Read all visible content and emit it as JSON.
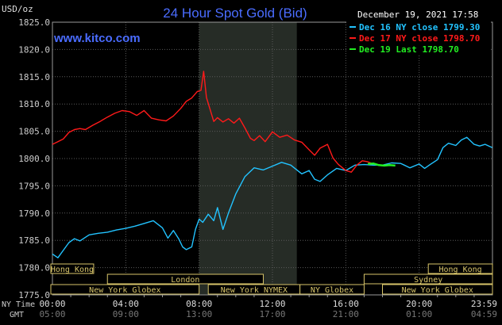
{
  "header": {
    "title": "24 Hour Spot Gold (Bid)",
    "unit": "USD/oz",
    "brand": "www.kitco.com",
    "datetime": "December 19, 2021 17:58"
  },
  "legend": [
    {
      "label": "Dec 16 NY close 1799.30",
      "color": "#22c3ff"
    },
    {
      "label": "Dec 17 NY close 1798.70",
      "color": "#ff1a1a"
    },
    {
      "label": "Dec 19 Last 1798.70",
      "color": "#22ee22"
    }
  ],
  "axis_labels": {
    "ny_time": "NY Time",
    "gmt": "GMT"
  },
  "sessions": [
    {
      "name": "Hong Kong",
      "start": -0.5,
      "end": 2.25,
      "row": 0
    },
    {
      "name": "Hong Kong",
      "start": 20.5,
      "end": 24.0,
      "row": 0
    },
    {
      "name": "London",
      "start": 3.0,
      "end": 11.5,
      "row": 1
    },
    {
      "name": "Sydney",
      "start": 17.0,
      "end": 24.0,
      "row": 1
    },
    {
      "name": "New York Globex",
      "start": -0.5,
      "end": 8.0,
      "row": 2
    },
    {
      "name": "New York NYMEX",
      "start": 8.5,
      "end": 13.5,
      "row": 2
    },
    {
      "name": "NY Globex",
      "start": 13.5,
      "end": 17.0,
      "row": 2
    },
    {
      "name": "New York Globex",
      "start": 18.0,
      "end": 24.0,
      "row": 2
    }
  ],
  "chart_data": {
    "type": "line",
    "title": "24 Hour Spot Gold (Bid)",
    "ylabel": "USD/oz",
    "ylim": [
      1775.0,
      1825.0
    ],
    "xlim": [
      0,
      24
    ],
    "grid": true,
    "shaded_region": [
      8.0,
      13.33
    ],
    "yticks": [
      "1775.0",
      "1780.0",
      "1785.0",
      "1790.0",
      "1795.0",
      "1800.0",
      "1805.0",
      "1810.0",
      "1815.0",
      "1820.0",
      "1825.0"
    ],
    "x_ticks_ny": [
      "00:00",
      "04:00",
      "08:00",
      "12:00",
      "16:00",
      "20:00",
      "23:59"
    ],
    "x_ticks_gmt": [
      "05:00",
      "09:00",
      "13:00",
      "17:00",
      "21:00",
      "01:00",
      "04:59"
    ],
    "series": [
      {
        "name": "Dec 16 NY close 1799.30",
        "color": "#22c3ff",
        "x": [
          0.0,
          0.3,
          0.6,
          0.9,
          1.2,
          1.5,
          2.0,
          2.5,
          3.0,
          3.5,
          4.0,
          4.5,
          5.0,
          5.5,
          6.0,
          6.3,
          6.6,
          6.9,
          7.1,
          7.3,
          7.6,
          7.8,
          8.0,
          8.2,
          8.5,
          8.8,
          9.0,
          9.3,
          9.6,
          10.0,
          10.5,
          11.0,
          11.5,
          12.0,
          12.5,
          13.0,
          13.3,
          13.6,
          14.0,
          14.3,
          14.6,
          15.0,
          15.5,
          16.0,
          16.5,
          17.0,
          17.5,
          18.0,
          18.5,
          19.0,
          19.5,
          20.0,
          20.3,
          20.6,
          21.0,
          21.3,
          21.6,
          22.0,
          22.3,
          22.6,
          23.0,
          23.3,
          23.6,
          23.99
        ],
        "y": [
          1782.5,
          1781.8,
          1783.2,
          1784.6,
          1785.3,
          1784.9,
          1786.0,
          1786.3,
          1786.5,
          1786.9,
          1787.2,
          1787.6,
          1788.1,
          1788.6,
          1787.3,
          1785.4,
          1786.8,
          1785.2,
          1783.8,
          1783.3,
          1783.8,
          1787.0,
          1788.9,
          1788.3,
          1789.8,
          1788.6,
          1791.0,
          1787.0,
          1790.0,
          1793.5,
          1796.7,
          1798.3,
          1797.9,
          1798.6,
          1799.3,
          1798.8,
          1798.0,
          1797.2,
          1797.8,
          1796.2,
          1795.8,
          1797.0,
          1798.2,
          1797.8,
          1798.8,
          1798.9,
          1798.8,
          1798.8,
          1799.2,
          1799.1,
          1798.3,
          1799.0,
          1798.2,
          1798.9,
          1799.8,
          1802.0,
          1802.8,
          1802.4,
          1803.4,
          1803.9,
          1802.6,
          1802.3,
          1802.6,
          1802.0
        ]
      },
      {
        "name": "Dec 17 NY close 1798.70",
        "color": "#ff1a1a",
        "x": [
          0.0,
          0.3,
          0.6,
          0.9,
          1.2,
          1.5,
          1.8,
          2.2,
          2.6,
          3.0,
          3.4,
          3.8,
          4.2,
          4.6,
          5.0,
          5.4,
          5.8,
          6.2,
          6.6,
          7.0,
          7.3,
          7.6,
          7.9,
          8.1,
          8.25,
          8.4,
          8.6,
          8.8,
          9.0,
          9.3,
          9.6,
          9.9,
          10.2,
          10.5,
          10.8,
          11.0,
          11.3,
          11.6,
          12.0,
          12.4,
          12.8,
          13.2,
          13.6,
          14.0,
          14.3,
          14.6,
          15.0,
          15.3,
          15.6,
          16.0,
          16.3,
          16.6,
          16.9,
          17.2,
          17.5
        ],
        "y": [
          1802.6,
          1803.1,
          1803.6,
          1804.8,
          1805.3,
          1805.5,
          1805.3,
          1806.1,
          1806.8,
          1807.6,
          1808.3,
          1808.8,
          1808.6,
          1807.9,
          1808.8,
          1807.4,
          1807.1,
          1806.9,
          1807.8,
          1809.2,
          1810.5,
          1811.1,
          1812.3,
          1812.5,
          1816.0,
          1811.2,
          1809.0,
          1806.8,
          1807.5,
          1806.7,
          1807.3,
          1806.5,
          1807.4,
          1805.6,
          1803.7,
          1803.3,
          1804.2,
          1803.1,
          1804.9,
          1803.9,
          1804.3,
          1803.4,
          1803.0,
          1801.6,
          1800.6,
          1801.9,
          1802.6,
          1800.1,
          1798.9,
          1797.8,
          1797.5,
          1798.8,
          1799.6,
          1799.4,
          1799.0
        ]
      },
      {
        "name": "Dec 19 Last 1798.70",
        "color": "#22ee22",
        "x": [
          17.2,
          17.5,
          17.8,
          18.1,
          18.4,
          18.7
        ],
        "y": [
          1799.0,
          1799.1,
          1798.8,
          1798.7,
          1798.8,
          1798.7
        ]
      }
    ]
  }
}
